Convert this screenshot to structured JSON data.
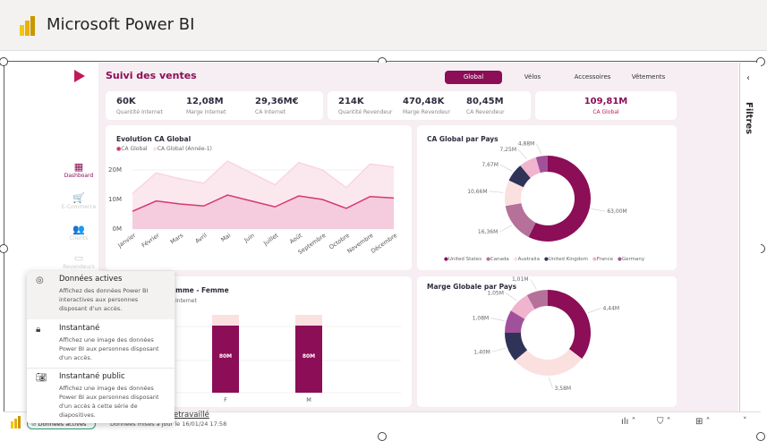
{
  "app": {
    "title": "Microsoft Power BI"
  },
  "report": {
    "title": "Suivi des ventes",
    "tabs": [
      {
        "label": "Global",
        "active": true
      },
      {
        "label": "Vélos"
      },
      {
        "label": "Accessoires"
      },
      {
        "label": "Vêtements"
      }
    ],
    "nav": [
      {
        "label": "Dashboard",
        "icon": "dashboard-icon",
        "active": true
      },
      {
        "label": "E-Commerce",
        "icon": "cart-icon"
      },
      {
        "label": "Clients",
        "icon": "users-icon"
      },
      {
        "label": "Revendeurs",
        "icon": "store-icon"
      }
    ],
    "kpi_internet": [
      {
        "value": "60K",
        "label": "Quantité Internet"
      },
      {
        "value": "12,08M",
        "label": "Marge Internet"
      },
      {
        "value": "29,36M€",
        "label": "CA Internet"
      }
    ],
    "kpi_reseller": [
      {
        "value": "214K",
        "label": "Quantité Revendeur"
      },
      {
        "value": "470,48K",
        "label": "Marge Revendeur"
      },
      {
        "value": "80,45M",
        "label": "CA Revendeur"
      }
    ],
    "kpi_global": {
      "value": "109,81M",
      "label": "CA Global"
    },
    "accent": "#8b0e57"
  },
  "chart_data": [
    {
      "type": "area",
      "title": "Evolution CA Global",
      "categories": [
        "Janvier",
        "Février",
        "Mars",
        "Avril",
        "Mai",
        "Juin",
        "Juillet",
        "Août",
        "Septembre",
        "Octobre",
        "Novembre",
        "Décembre"
      ],
      "series": [
        {
          "name": "CA Global (Année-1)",
          "color": "#fbe3ea",
          "values": [
            12,
            19,
            17,
            15.5,
            23,
            19,
            15,
            22.5,
            20,
            14,
            22,
            21
          ]
        },
        {
          "name": "CA Global",
          "color": "#d6386f",
          "values": [
            6,
            9.5,
            8.5,
            7.8,
            11.5,
            9.5,
            7.5,
            11.2,
            10,
            7,
            11,
            10.5
          ]
        }
      ],
      "yticks": [
        "0M",
        "10M",
        "20M"
      ],
      "ylim": [
        0,
        25
      ],
      "legend": "top-left"
    },
    {
      "type": "pie",
      "title": "CA Global par Pays",
      "legend": "bottom",
      "slices": [
        {
          "name": "United States",
          "value": 63.0,
          "label": "63,00M",
          "color": "#8b0e57"
        },
        {
          "name": "Canada",
          "value": 16.36,
          "label": "16,36M",
          "color": "#b5719a"
        },
        {
          "name": "Australia",
          "value": 10.66,
          "label": "10,66M",
          "color": "#fbe0e0"
        },
        {
          "name": "United Kingdom",
          "value": 7.67,
          "label": "7,67M",
          "color": "#2f3358"
        },
        {
          "name": "France",
          "value": 7.25,
          "label": "7,25M",
          "color": "#f0b4cf"
        },
        {
          "name": "Germany",
          "value": 4.88,
          "label": "4,88M",
          "color": "#a1519a"
        }
      ]
    },
    {
      "type": "pie",
      "title": "Marge Globale par Pays",
      "slices": [
        {
          "name": "United States",
          "value": 4.44,
          "label": "4,44M",
          "color": "#8b0e57"
        },
        {
          "name": "Australia",
          "value": 3.58,
          "label": "3,58M",
          "color": "#fbe0e0"
        },
        {
          "name": "United Kingdom",
          "value": 1.4,
          "label": "1,40M",
          "color": "#2f3358"
        },
        {
          "name": "Germany",
          "value": 1.08,
          "label": "1,08M",
          "color": "#a1519a"
        },
        {
          "name": "France",
          "value": 1.05,
          "label": "1,05M",
          "color": "#f0b4cf"
        },
        {
          "name": "Canada",
          "value": 1.01,
          "label": "1,01M",
          "color": "#b5719a"
        }
      ]
    },
    {
      "type": "bar",
      "title": "mme - Femme",
      "subtitle": "Internet",
      "categories": [
        "F",
        "M"
      ],
      "series": [
        {
          "values": [
            80,
            80
          ],
          "labels": [
            "80M",
            "80M"
          ],
          "color": "#8b0e57"
        }
      ]
    }
  ],
  "popup": {
    "options": [
      {
        "title": "Données actives",
        "desc": "Affichez des données Power BI interactives aux personnes disposant d'un accès.",
        "icon": "check-circle-icon"
      },
      {
        "title": "Instantané",
        "desc": "Affichez une image des données Power BI aux personnes disposant d'un accès.",
        "icon": "lock-icon"
      },
      {
        "title": "Instantané public",
        "desc": "Affichez une image des données Power BI aux personnes disposant d'un accès à cette série de diapositives.",
        "icon": "camera-icon"
      }
    ]
  },
  "bottom": {
    "mode_button": "Données actives",
    "updated": "Données mises à jour le 16/01/24 17:58",
    "link": "etravaillé"
  },
  "filters": {
    "label": "Filtres"
  }
}
